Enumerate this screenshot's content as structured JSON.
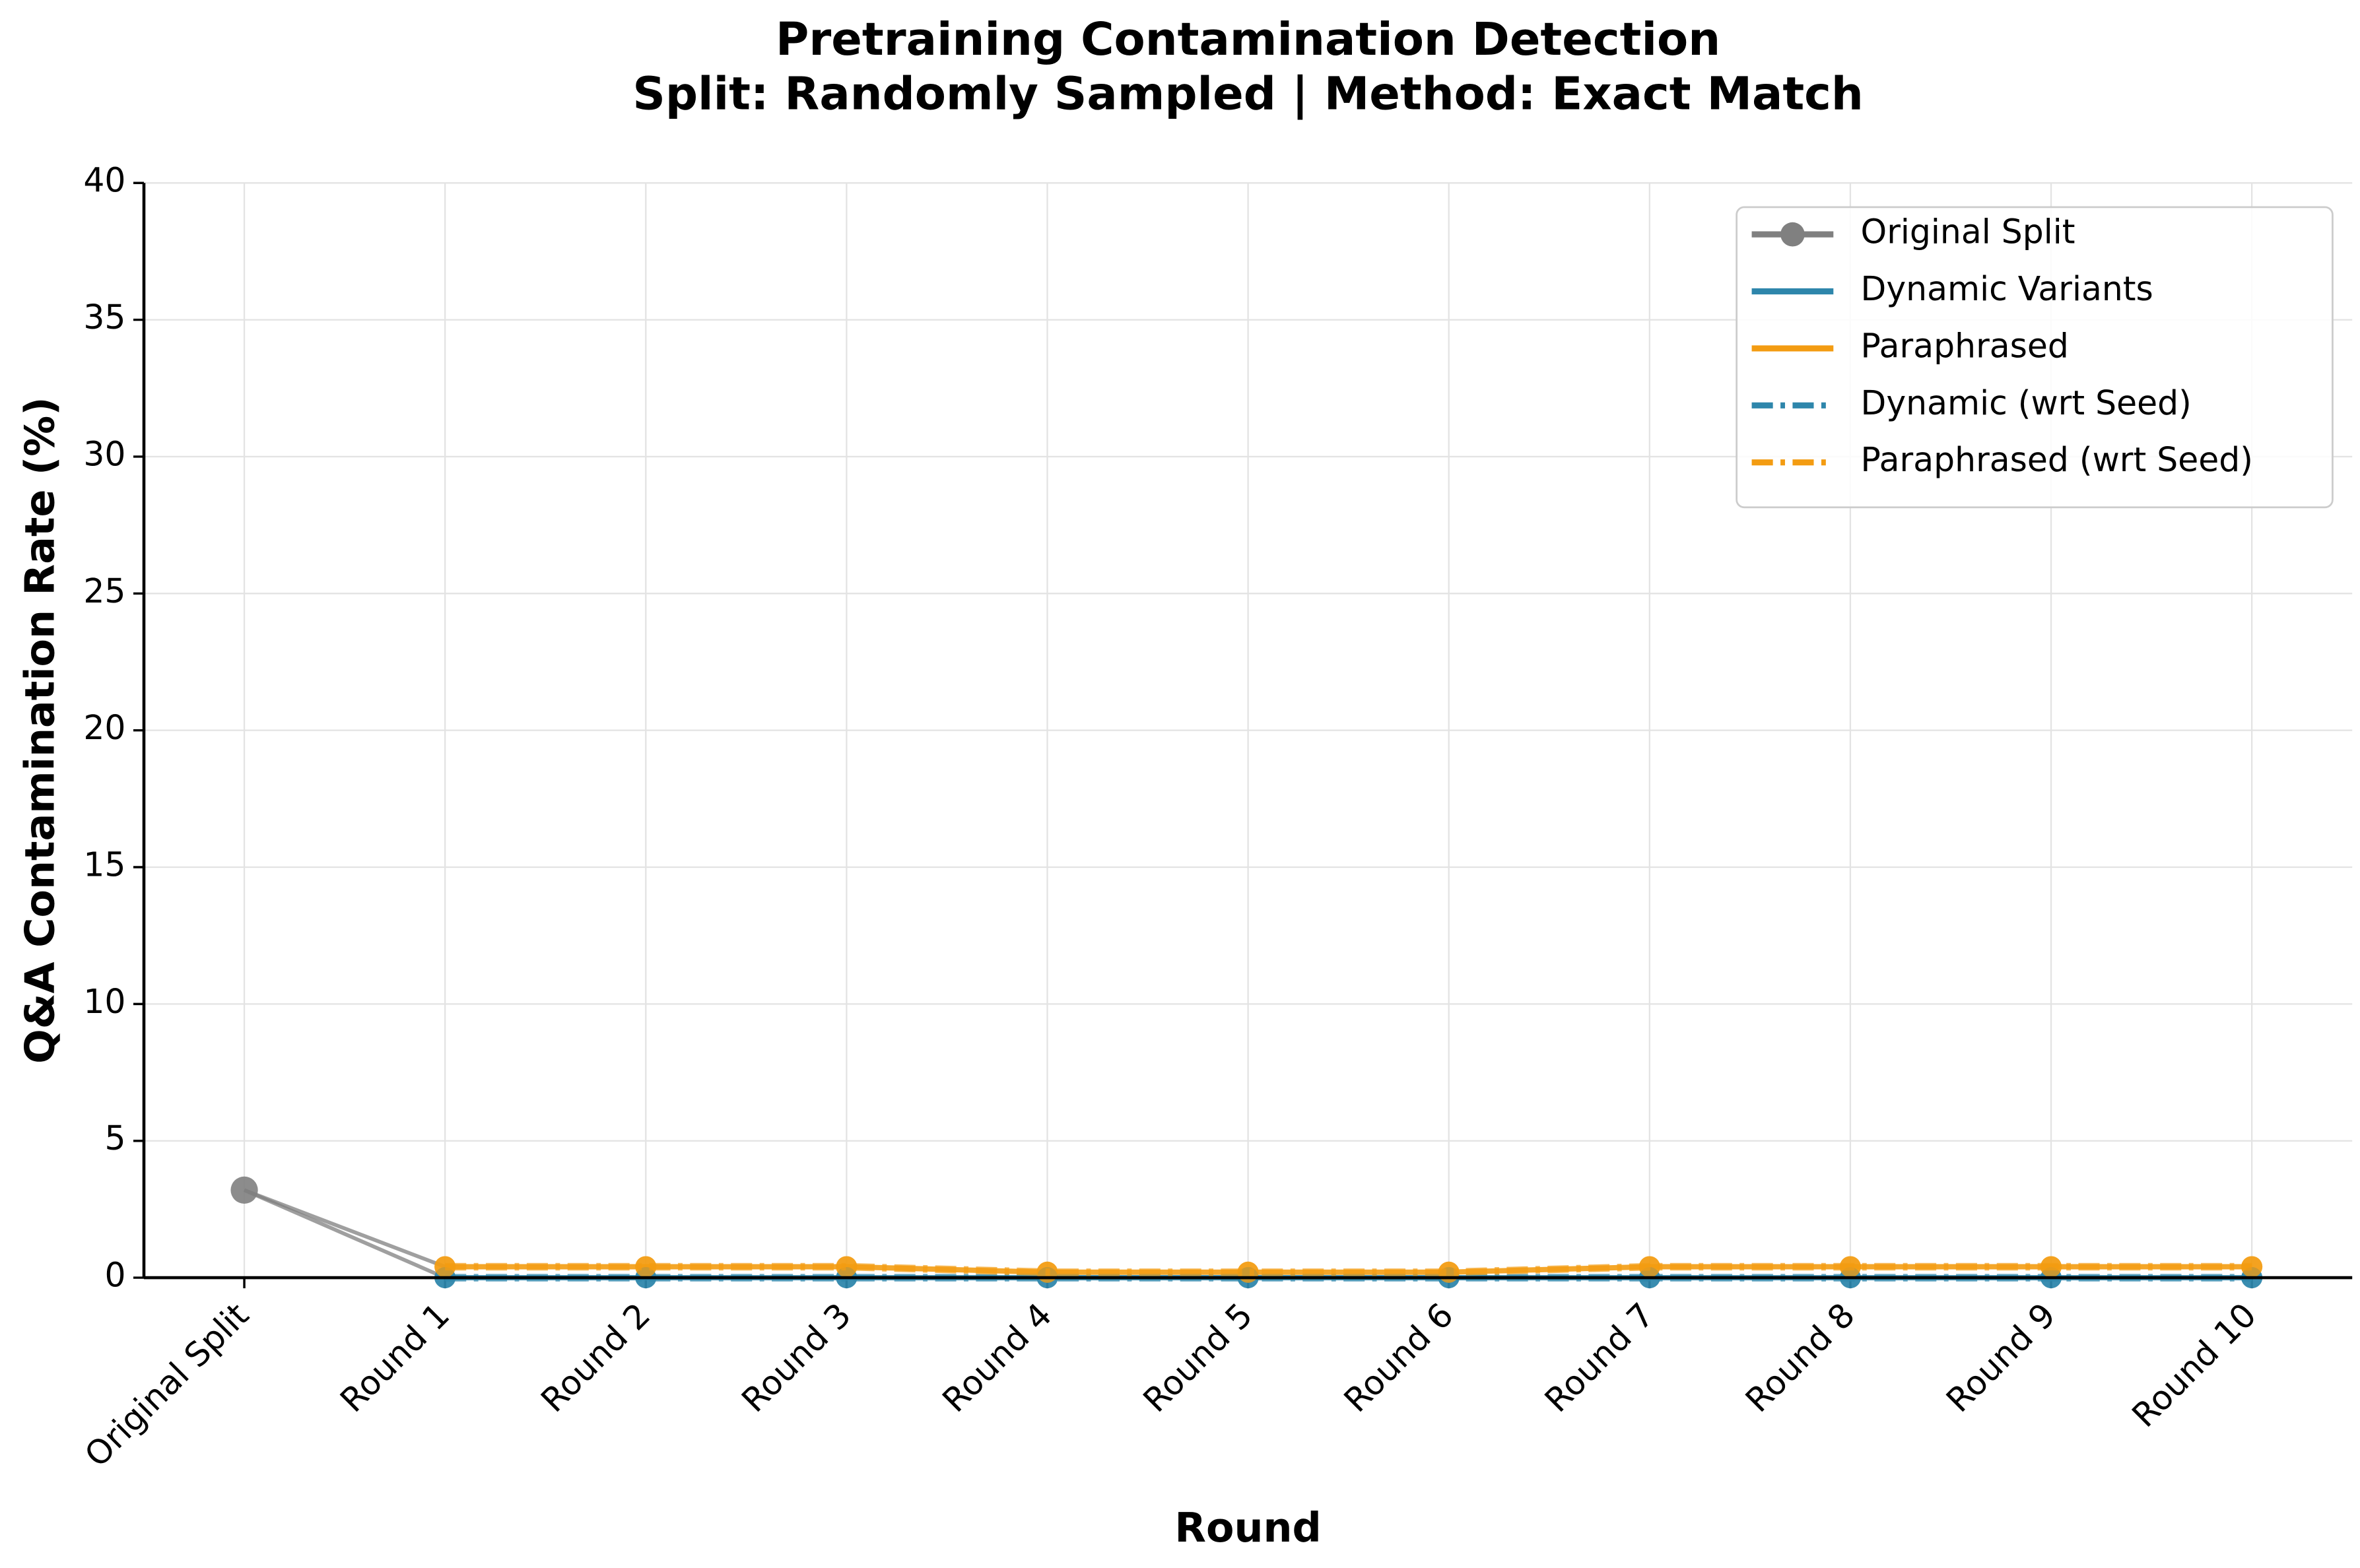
{
  "chart_data": {
    "type": "line",
    "title": "Pretraining Contamination Detection",
    "subtitle": "Split: Randomly Sampled | Method: Exact Match",
    "x_label": "Round",
    "y_label": "Q&A Contamination Rate (%)",
    "categories": [
      "Original Split",
      "Round 1",
      "Round 2",
      "Round 3",
      "Round 4",
      "Round 5",
      "Round 6",
      "Round 7",
      "Round 8",
      "Round 9",
      "Round 10"
    ],
    "series": [
      {
        "name": "Original Split",
        "color": "#808080",
        "linestyle": "solid",
        "values": [
          3.2,
          null,
          null,
          null,
          null,
          null,
          null,
          null,
          null,
          null,
          null
        ]
      },
      {
        "name": "Dynamic Variants",
        "color": "#2e86ab",
        "linestyle": "solid",
        "values": [
          null,
          0,
          0,
          0,
          0,
          0,
          0,
          0,
          0,
          0,
          0
        ]
      },
      {
        "name": "Paraphrased",
        "color": "#f39c12",
        "linestyle": "solid",
        "values": [
          null,
          0.4,
          0.4,
          0.4,
          0.2,
          0.2,
          0.2,
          0.4,
          0.4,
          0.4,
          0.4
        ]
      },
      {
        "name": "Dynamic (wrt Seed)",
        "color": "#2e86ab",
        "linestyle": "dashdot",
        "values": [
          null,
          0,
          0,
          0,
          0,
          0,
          0,
          0,
          0,
          0,
          0
        ]
      },
      {
        "name": "Paraphrased (wrt Seed)",
        "color": "#f39c12",
        "linestyle": "dashdot",
        "values": [
          null,
          0.4,
          0.4,
          0.4,
          0.2,
          0.2,
          0.2,
          0.4,
          0.4,
          0.4,
          0.4
        ]
      }
    ],
    "ylim": [
      0,
      40
    ],
    "yticks": [
      0,
      5,
      10,
      15,
      20,
      25,
      30,
      35,
      40
    ],
    "grid": true,
    "legend": "upper right"
  }
}
